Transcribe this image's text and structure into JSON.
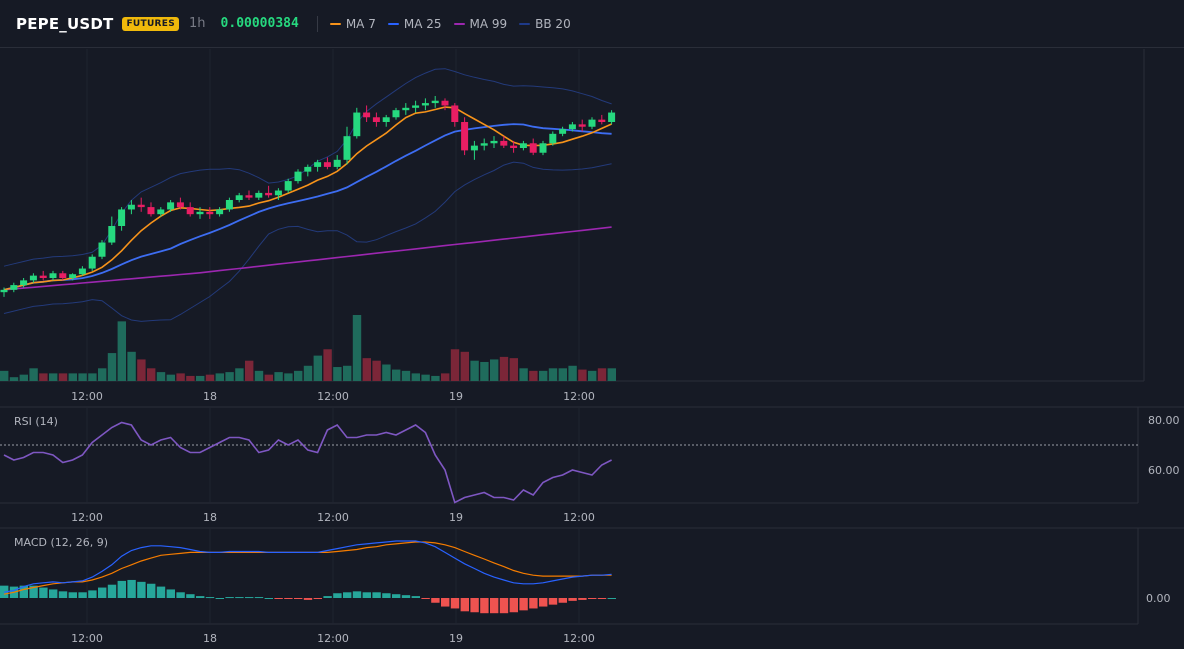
{
  "header": {
    "symbol": "PEPE_USDT",
    "badge": "FUTURES",
    "timeframe": "1h",
    "price": "0.00000384",
    "legend": [
      {
        "name": "MA 7",
        "color": "#f7931a"
      },
      {
        "name": "MA 25",
        "color": "#2962ff"
      },
      {
        "name": "MA 99",
        "color": "#9c27b0"
      },
      {
        "name": "BB 20",
        "color": "#1e3a8a"
      }
    ]
  },
  "panes": {
    "rsi_label": "RSI (14)",
    "macd_label": "MACD (12, 26, 9)"
  },
  "colors": {
    "background": "#161a25",
    "up": "#26d97f",
    "down": "#e91e63",
    "vol_up": "#1f6b5c",
    "vol_down": "#7b2638",
    "rsi": "#7e57c2",
    "macd": "#2962ff",
    "signal": "#f57c00",
    "hist_up": "#26a69a",
    "hist_down": "#ef5350"
  },
  "chart_data": [
    {
      "type": "candlestick",
      "title": "PEPE_USDT 1h",
      "x_tick_labels": [
        "12:00",
        "18",
        "12:00",
        "19",
        "12:00"
      ],
      "y_axis": "not shown",
      "candles_ohlc_relative": [
        [
          48,
          49,
          47,
          48.5
        ],
        [
          48.5,
          50,
          48,
          49.5
        ],
        [
          49.5,
          51,
          49,
          50.5
        ],
        [
          50.5,
          52,
          50,
          51.5
        ],
        [
          51.5,
          52.5,
          50.5,
          51
        ],
        [
          51,
          52.5,
          50.5,
          52
        ],
        [
          52,
          52.5,
          50.5,
          51
        ],
        [
          51,
          52,
          50.5,
          51.8
        ],
        [
          51.8,
          53.5,
          51.5,
          53
        ],
        [
          53,
          56,
          52.5,
          55.5
        ],
        [
          55.5,
          59,
          55,
          58.5
        ],
        [
          58.5,
          64,
          58,
          62
        ],
        [
          62,
          66,
          61,
          65.5
        ],
        [
          65.5,
          67.5,
          64.5,
          66.5
        ],
        [
          66.5,
          68,
          65,
          66
        ],
        [
          66,
          67,
          64,
          64.5
        ],
        [
          64.5,
          66,
          64,
          65.5
        ],
        [
          65.5,
          67.5,
          65,
          67
        ],
        [
          67,
          68,
          65.5,
          66
        ],
        [
          66,
          67,
          64,
          64.5
        ],
        [
          64.5,
          66,
          63.5,
          65
        ],
        [
          65,
          66,
          63.5,
          64.5
        ],
        [
          64.5,
          66,
          64,
          65.5
        ],
        [
          65.5,
          68,
          65,
          67.5
        ],
        [
          67.5,
          69,
          67,
          68.5
        ],
        [
          68.5,
          69.5,
          67.5,
          68
        ],
        [
          68,
          69.5,
          67.5,
          69
        ],
        [
          69,
          70.5,
          68,
          68.5
        ],
        [
          68.5,
          70,
          67.5,
          69.5
        ],
        [
          69.5,
          72,
          69,
          71.5
        ],
        [
          71.5,
          74,
          71,
          73.5
        ],
        [
          73.5,
          75,
          72.5,
          74.5
        ],
        [
          74.5,
          76,
          73.5,
          75.5
        ],
        [
          75.5,
          76.5,
          74,
          74.5
        ],
        [
          74.5,
          77,
          74,
          76
        ],
        [
          76,
          83,
          75,
          81
        ],
        [
          81,
          87,
          80.5,
          86
        ],
        [
          86,
          87.5,
          84,
          85
        ],
        [
          85,
          86,
          83,
          84
        ],
        [
          84,
          85.5,
          83,
          85
        ],
        [
          85,
          87,
          84.5,
          86.5
        ],
        [
          86.5,
          88,
          85.5,
          87
        ],
        [
          87,
          88.5,
          86,
          87.5
        ],
        [
          87.5,
          89,
          86.5,
          88
        ],
        [
          88,
          89.5,
          87,
          88.5
        ],
        [
          88.5,
          89,
          86.5,
          87.5
        ],
        [
          87.5,
          88,
          83,
          84
        ],
        [
          84,
          85,
          77,
          78
        ],
        [
          78,
          80,
          76,
          79
        ],
        [
          79,
          80.5,
          78,
          79.5
        ],
        [
          79.5,
          81,
          78.5,
          80
        ],
        [
          80,
          81,
          78.5,
          79
        ],
        [
          79,
          80,
          77.5,
          78.5
        ],
        [
          78.5,
          80,
          78,
          79.5
        ],
        [
          79.5,
          80.5,
          77,
          77.5
        ],
        [
          77.5,
          80,
          77,
          79.5
        ],
        [
          79.5,
          82,
          79,
          81.5
        ],
        [
          81.5,
          83,
          81,
          82.5
        ],
        [
          82.5,
          84,
          82,
          83.5
        ],
        [
          83.5,
          84.5,
          82,
          83
        ],
        [
          83,
          85,
          82.5,
          84.5
        ],
        [
          84.5,
          85.5,
          83.5,
          84
        ],
        [
          84,
          86.5,
          83.5,
          86
        ]
      ],
      "volume_relative": [
        8,
        3,
        5,
        10,
        6,
        6,
        6,
        6,
        6,
        6,
        10,
        22,
        47,
        23,
        17,
        10,
        7,
        5,
        6,
        4,
        4,
        5,
        6,
        7,
        10,
        16,
        8,
        5,
        7,
        6,
        8,
        12,
        20,
        25,
        11,
        12,
        52,
        18,
        16,
        13,
        9,
        8,
        6,
        5,
        4,
        6,
        25,
        23,
        16,
        15,
        17,
        19,
        18,
        10,
        8,
        8,
        10,
        10,
        12,
        9,
        8,
        10,
        10
      ],
      "overlays": [
        "MA 7",
        "MA 25",
        "MA 99",
        "BB 20"
      ]
    },
    {
      "type": "line",
      "title": "RSI (14)",
      "y_tick_labels": [
        "80.00",
        "60.00"
      ],
      "ylim": [
        48,
        84
      ],
      "reference_line": 70,
      "values": [
        66,
        64,
        65,
        67,
        67,
        66,
        63,
        64,
        66,
        71,
        74,
        77,
        79,
        78,
        72,
        70,
        72,
        73,
        69,
        67,
        67,
        69,
        71,
        73,
        73,
        72,
        67,
        68,
        72,
        70,
        72,
        68,
        67,
        76,
        78,
        73,
        73,
        74,
        74,
        75,
        74,
        76,
        78,
        75,
        66,
        60,
        47,
        49,
        50,
        51,
        49,
        49,
        48,
        52,
        50,
        55,
        57,
        58,
        60,
        59,
        58,
        62,
        64
      ]
    },
    {
      "type": "line",
      "title": "MACD (12, 26, 9)",
      "y_tick_labels": [
        "0.00"
      ],
      "macd": [
        0.6,
        0.8,
        1.2,
        1.5,
        1.6,
        1.7,
        1.6,
        1.7,
        1.8,
        2.2,
        2.8,
        3.5,
        4.4,
        5.0,
        5.3,
        5.5,
        5.5,
        5.4,
        5.3,
        5.1,
        4.9,
        4.8,
        4.8,
        4.9,
        4.9,
        4.9,
        4.9,
        4.8,
        4.8,
        4.8,
        4.8,
        4.8,
        4.8,
        5.0,
        5.2,
        5.4,
        5.6,
        5.7,
        5.8,
        5.9,
        6.0,
        6.0,
        6.0,
        5.8,
        5.4,
        4.8,
        4.2,
        3.6,
        3.1,
        2.6,
        2.2,
        1.9,
        1.6,
        1.5,
        1.5,
        1.6,
        1.8,
        2.0,
        2.2,
        2.3,
        2.4,
        2.4,
        2.5
      ],
      "signal": [
        0.4,
        0.6,
        0.9,
        1.1,
        1.3,
        1.5,
        1.6,
        1.7,
        1.7,
        1.9,
        2.2,
        2.6,
        3.1,
        3.5,
        3.9,
        4.2,
        4.5,
        4.6,
        4.7,
        4.8,
        4.8,
        4.8,
        4.8,
        4.8,
        4.8,
        4.8,
        4.8,
        4.8,
        4.8,
        4.8,
        4.8,
        4.8,
        4.8,
        4.8,
        4.9,
        5.0,
        5.1,
        5.3,
        5.4,
        5.6,
        5.7,
        5.8,
        5.9,
        5.9,
        5.8,
        5.6,
        5.3,
        4.9,
        4.5,
        4.1,
        3.7,
        3.3,
        2.9,
        2.6,
        2.4,
        2.3,
        2.3,
        2.3,
        2.3,
        2.3,
        2.4,
        2.4,
        2.4
      ],
      "histogram": [
        1.3,
        1.2,
        1.3,
        1.3,
        1.1,
        0.9,
        0.7,
        0.6,
        0.6,
        0.8,
        1.1,
        1.4,
        1.8,
        1.9,
        1.7,
        1.5,
        1.2,
        0.9,
        0.6,
        0.4,
        0.2,
        0.1,
        0.0,
        0.1,
        0.1,
        0.1,
        0.1,
        0.0,
        -0.1,
        -0.1,
        -0.1,
        -0.2,
        -0.1,
        0.2,
        0.5,
        0.6,
        0.7,
        0.6,
        0.6,
        0.5,
        0.4,
        0.3,
        0.2,
        -0.1,
        -0.5,
        -0.9,
        -1.1,
        -1.4,
        -1.5,
        -1.6,
        -1.6,
        -1.6,
        -1.5,
        -1.3,
        -1.1,
        -0.9,
        -0.7,
        -0.5,
        -0.3,
        -0.2,
        -0.1,
        -0.1,
        0.0
      ]
    }
  ]
}
